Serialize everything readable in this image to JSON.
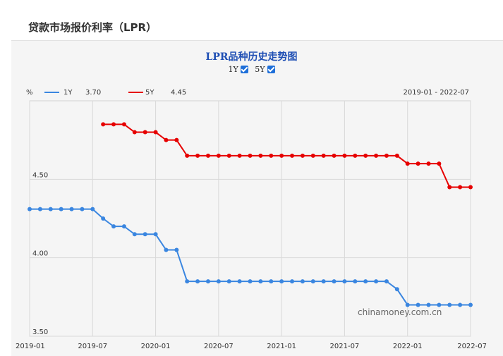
{
  "page": {
    "title": "贷款市场报价利率（LPR）"
  },
  "toggles": [
    {
      "label": "1Y",
      "checked": true
    },
    {
      "label": "5Y",
      "checked": true
    }
  ],
  "watermark": "chinamoney.com.cn",
  "colors": {
    "one_year": "#3a86e0",
    "five_year": "#e60000",
    "title": "#1f4fb4"
  },
  "chart_data": {
    "type": "line",
    "title": "LPR品种历史走势图",
    "ylabel": "%",
    "date_range_text": "2019-01 - 2022-07",
    "ylim": [
      3.5,
      5.0
    ],
    "yticks": [
      {
        "value": 4.5,
        "label": "4.50"
      },
      {
        "value": 4.0,
        "label": "4.00"
      },
      {
        "value": 3.5,
        "label": "3.50"
      }
    ],
    "xticks": [
      "2019-01",
      "2019-07",
      "2020-01",
      "2020-07",
      "2021-01",
      "2021-07",
      "2022-01",
      "2022-07"
    ],
    "x": [
      "2019-01",
      "2019-02",
      "2019-03",
      "2019-04",
      "2019-05",
      "2019-06",
      "2019-07",
      "2019-08",
      "2019-09",
      "2019-10",
      "2019-11",
      "2019-12",
      "2020-01",
      "2020-02",
      "2020-03",
      "2020-04",
      "2020-05",
      "2020-06",
      "2020-07",
      "2020-08",
      "2020-09",
      "2020-10",
      "2020-11",
      "2020-12",
      "2021-01",
      "2021-02",
      "2021-03",
      "2021-04",
      "2021-05",
      "2021-06",
      "2021-07",
      "2021-08",
      "2021-09",
      "2021-10",
      "2021-11",
      "2021-12",
      "2022-01",
      "2022-02",
      "2022-03",
      "2022-04",
      "2022-05",
      "2022-06",
      "2022-07"
    ],
    "series": [
      {
        "name": "1Y",
        "latest_label": "3.70",
        "values": [
          4.31,
          4.31,
          4.31,
          4.31,
          4.31,
          4.31,
          4.31,
          4.25,
          4.2,
          4.2,
          4.15,
          4.15,
          4.15,
          4.05,
          4.05,
          3.85,
          3.85,
          3.85,
          3.85,
          3.85,
          3.85,
          3.85,
          3.85,
          3.85,
          3.85,
          3.85,
          3.85,
          3.85,
          3.85,
          3.85,
          3.85,
          3.85,
          3.85,
          3.85,
          3.85,
          3.8,
          3.7,
          3.7,
          3.7,
          3.7,
          3.7,
          3.7,
          3.7
        ]
      },
      {
        "name": "5Y",
        "latest_label": "4.45",
        "values": [
          null,
          null,
          null,
          null,
          null,
          null,
          null,
          4.85,
          4.85,
          4.85,
          4.8,
          4.8,
          4.8,
          4.75,
          4.75,
          4.65,
          4.65,
          4.65,
          4.65,
          4.65,
          4.65,
          4.65,
          4.65,
          4.65,
          4.65,
          4.65,
          4.65,
          4.65,
          4.65,
          4.65,
          4.65,
          4.65,
          4.65,
          4.65,
          4.65,
          4.65,
          4.6,
          4.6,
          4.6,
          4.6,
          4.45,
          4.45,
          4.45
        ]
      }
    ]
  }
}
